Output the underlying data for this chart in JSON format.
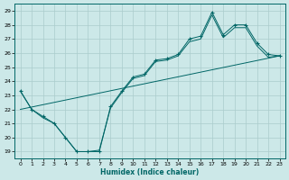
{
  "xlabel": "Humidex (Indice chaleur)",
  "bg_color": "#cce8e8",
  "grid_color": "#aacccc",
  "line_color": "#006666",
  "xlim": [
    -0.5,
    23.5
  ],
  "ylim": [
    18.5,
    29.5
  ],
  "xticks": [
    0,
    1,
    2,
    3,
    4,
    5,
    6,
    7,
    8,
    9,
    10,
    11,
    12,
    13,
    14,
    15,
    16,
    17,
    18,
    19,
    20,
    21,
    22,
    23
  ],
  "yticks": [
    19,
    20,
    21,
    22,
    23,
    24,
    25,
    26,
    27,
    28,
    29
  ],
  "line1_x": [
    0,
    1,
    2,
    3,
    4,
    5,
    6,
    7,
    8,
    9,
    10,
    11,
    12,
    13,
    14,
    15,
    16,
    17,
    18,
    19,
    20,
    21,
    22,
    23
  ],
  "line1_y": [
    23.3,
    22.0,
    21.5,
    21.0,
    20.0,
    19.0,
    19.0,
    19.0,
    22.2,
    23.3,
    24.3,
    24.5,
    25.5,
    25.6,
    25.9,
    27.0,
    27.2,
    28.9,
    27.3,
    28.0,
    28.0,
    26.7,
    25.9,
    25.8
  ],
  "line2_x": [
    0,
    1,
    2,
    3,
    4,
    5,
    6,
    7,
    8,
    9,
    10,
    11,
    12,
    13,
    14,
    15,
    16,
    17,
    18,
    19,
    20,
    21,
    22,
    23
  ],
  "line2_y": [
    23.3,
    22.0,
    21.4,
    21.0,
    20.0,
    19.0,
    19.0,
    19.1,
    22.1,
    23.2,
    24.2,
    24.4,
    25.4,
    25.5,
    25.8,
    26.8,
    27.0,
    28.7,
    27.1,
    27.8,
    27.8,
    26.5,
    25.7,
    25.8
  ],
  "trend_x": [
    0,
    23
  ],
  "trend_y": [
    22.0,
    25.8
  ]
}
